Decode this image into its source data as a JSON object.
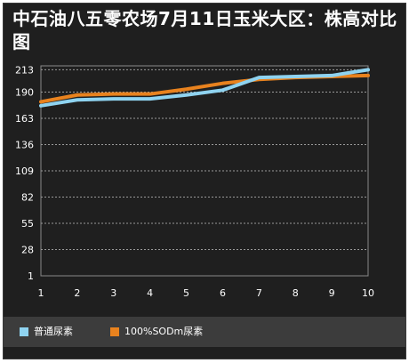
{
  "chart_data": {
    "type": "line",
    "title": "中石油八五零农场7月11日玉米大区：株高对比图",
    "xlabel": "",
    "ylabel": "",
    "x": [
      1,
      2,
      3,
      4,
      5,
      6,
      7,
      8,
      9,
      10
    ],
    "yticks": [
      1,
      28,
      55,
      82,
      109,
      136,
      163,
      190,
      213
    ],
    "ylim": [
      1,
      217
    ],
    "grid": true,
    "legend_position": "bottom-left",
    "series": [
      {
        "name": "普通尿素",
        "color": "#8fd3f0",
        "values": [
          176,
          182,
          183,
          183,
          187,
          192,
          205,
          206,
          207,
          213
        ]
      },
      {
        "name": "100%SODm尿素",
        "color": "#e8821e",
        "values": [
          180,
          187,
          188,
          188,
          193,
          199,
          203,
          205,
          206,
          207
        ]
      }
    ]
  }
}
